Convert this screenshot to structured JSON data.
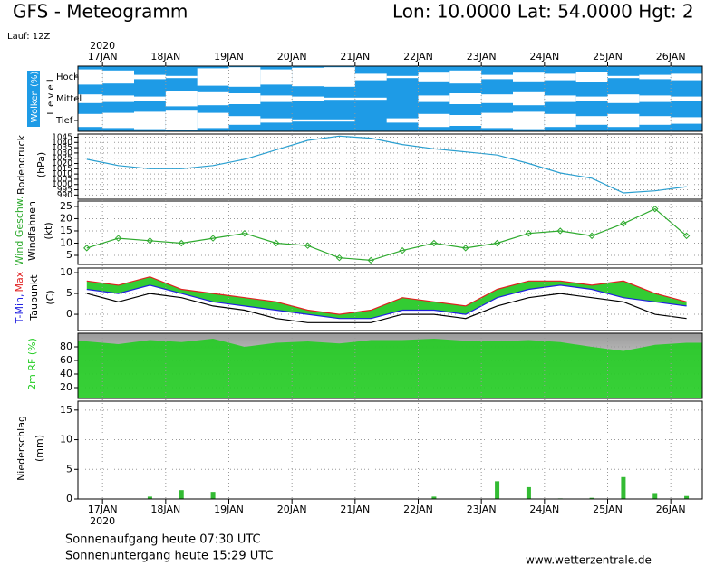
{
  "header": {
    "title": "GFS - Meteogramm",
    "location": "Lon: 10.0000 Lat: 54.0000 Hgt: 2",
    "run": "Lauf: 12Z"
  },
  "x_axis": {
    "xlim": [
      16.61,
      26.5
    ],
    "year": "2020",
    "xticks": [
      {
        "value": 17,
        "label": "17JAN"
      },
      {
        "value": 18,
        "label": "18JAN"
      },
      {
        "value": 19,
        "label": "19JAN"
      },
      {
        "value": 20,
        "label": "20JAN"
      },
      {
        "value": 21,
        "label": "21JAN"
      },
      {
        "value": 22,
        "label": "22JAN"
      },
      {
        "value": 23,
        "label": "23JAN"
      },
      {
        "value": 24,
        "label": "24JAN"
      },
      {
        "value": 25,
        "label": "25JAN"
      },
      {
        "value": 26,
        "label": "26JAN"
      }
    ]
  },
  "chart_data": [
    {
      "type": "cloud",
      "title": "Wolken (%)",
      "ylabel": "L e v e l",
      "color": "#1e9be6",
      "x": [
        16.75,
        17.25,
        17.75,
        18.25,
        18.75,
        19.25,
        19.75,
        20.25,
        20.75,
        21.25,
        21.75,
        22.25,
        22.75,
        23.25,
        23.75,
        24.25,
        24.75,
        25.25,
        25.75,
        26.25
      ],
      "series": [
        {
          "name": "Hoch",
          "values": [
            70,
            60,
            20,
            10,
            80,
            90,
            70,
            85,
            90,
            30,
            10,
            40,
            60,
            20,
            40,
            30,
            50,
            10,
            20,
            30
          ]
        },
        {
          "name": "Mittel",
          "values": [
            40,
            30,
            20,
            70,
            60,
            50,
            30,
            20,
            10,
            10,
            0,
            30,
            50,
            40,
            60,
            30,
            20,
            40,
            30,
            20
          ]
        },
        {
          "name": "Tief",
          "values": [
            60,
            70,
            80,
            90,
            70,
            40,
            20,
            10,
            10,
            0,
            20,
            60,
            50,
            70,
            80,
            60,
            40,
            60,
            40,
            30
          ]
        }
      ]
    },
    {
      "type": "line",
      "ylabel": "Bodendruck",
      "unit": "(hPa)",
      "x": [
        16.75,
        17.25,
        17.75,
        18.25,
        18.75,
        19.25,
        19.75,
        20.25,
        20.75,
        21.25,
        21.75,
        22.25,
        22.75,
        23.25,
        23.75,
        24.25,
        24.75,
        25.25,
        25.75,
        26.25
      ],
      "ylim": [
        986,
        1048
      ],
      "yticks": [
        1045,
        1040,
        1035,
        1030,
        1025,
        1020,
        1015,
        1010,
        1005,
        1000,
        995,
        990
      ],
      "series": [
        {
          "color": "#2a9fd0",
          "values": [
            1024,
            1018,
            1015,
            1015,
            1018,
            1024,
            1033,
            1042,
            1046,
            1044,
            1038,
            1034,
            1031,
            1028,
            1020,
            1011,
            1006,
            992,
            994,
            998
          ]
        }
      ]
    },
    {
      "type": "line",
      "ylabel": "Windfahnen",
      "unit": "(kt)",
      "markers": true,
      "x": [
        16.75,
        17.25,
        17.75,
        18.25,
        18.75,
        19.25,
        19.75,
        20.25,
        20.75,
        21.25,
        21.75,
        22.25,
        22.75,
        23.25,
        23.75,
        24.25,
        24.75,
        25.25,
        25.75,
        26.25
      ],
      "ylim": [
        1.3,
        27.2
      ],
      "yticks": [
        5,
        10,
        15,
        20,
        25
      ],
      "series": [
        {
          "name": "Wind Geschw.",
          "color": "#2eaa2e",
          "values": [
            8,
            12,
            11,
            10,
            12,
            14,
            10,
            9,
            4,
            3,
            7,
            10,
            8,
            10,
            14,
            15,
            13,
            18,
            24,
            13
          ]
        }
      ]
    },
    {
      "type": "temperature",
      "unit": "(C)",
      "fill": "#33cc33",
      "x": [
        16.75,
        17.25,
        17.75,
        18.25,
        18.75,
        19.25,
        19.75,
        20.25,
        20.75,
        21.25,
        21.75,
        22.25,
        22.75,
        23.25,
        23.75,
        24.25,
        24.75,
        25.25,
        25.75,
        26.25
      ],
      "ylim": [
        -3.9,
        11.1
      ],
      "yticks": [
        10,
        5,
        0
      ],
      "series": [
        {
          "name": "T-Min,",
          "color": "#2020e0",
          "values": [
            6,
            5,
            7,
            5,
            3,
            2,
            1,
            0,
            -1,
            -1,
            1,
            1,
            0,
            4,
            6,
            7,
            6,
            4,
            3,
            2
          ]
        },
        {
          "name": "Max",
          "color": "#e02020",
          "values": [
            8,
            7,
            9,
            6,
            5,
            4,
            3,
            1,
            0,
            1,
            4,
            3,
            2,
            6,
            8,
            8,
            7,
            8,
            5,
            3
          ]
        },
        {
          "name": "Taupunkt",
          "color": "#000000",
          "values": [
            5,
            3,
            5,
            4,
            2,
            1,
            -1,
            -2,
            -2,
            -2,
            0,
            0,
            -1,
            2,
            4,
            5,
            4,
            3,
            0,
            -1
          ]
        }
      ]
    },
    {
      "type": "area",
      "color": "#22cc22",
      "x": [
        16.75,
        17.25,
        17.75,
        18.25,
        18.75,
        19.25,
        19.75,
        20.25,
        20.75,
        21.25,
        21.75,
        22.25,
        22.75,
        23.25,
        23.75,
        24.25,
        24.75,
        25.25,
        25.75,
        26.25
      ],
      "ylim": [
        4,
        100
      ],
      "yticks": [
        80,
        60,
        40,
        20
      ],
      "series": [
        {
          "name": "2m RF (%)",
          "color": "#22cc22",
          "values": [
            88,
            84,
            90,
            87,
            92,
            80,
            86,
            88,
            85,
            90,
            90,
            92,
            89,
            88,
            90,
            87,
            80,
            74,
            83,
            86
          ]
        }
      ]
    },
    {
      "type": "bar",
      "ylabel": "Niederschlag",
      "unit": "(mm)",
      "color": "#33bb33",
      "x": [
        16.75,
        17.25,
        17.75,
        18.25,
        18.75,
        19.25,
        19.75,
        20.25,
        20.75,
        21.25,
        21.75,
        22.25,
        22.75,
        23.25,
        23.75,
        24.25,
        24.75,
        25.25,
        25.75,
        26.25
      ],
      "ylim": [
        0,
        16.5
      ],
      "yticks": [
        15,
        10,
        5,
        0
      ],
      "values": [
        0,
        0,
        0.4,
        1.5,
        1.2,
        0,
        0,
        0,
        0,
        0,
        0,
        0.4,
        0,
        3.0,
        2.0,
        0.1,
        0.2,
        3.7,
        1.0,
        0.5
      ]
    }
  ],
  "footer": {
    "sunrise": "Sonnenaufgang heute 07:30 UTC",
    "sunset": "Sonnenuntergang heute 15:29 UTC",
    "source": "www.wetterzentrale.de"
  }
}
